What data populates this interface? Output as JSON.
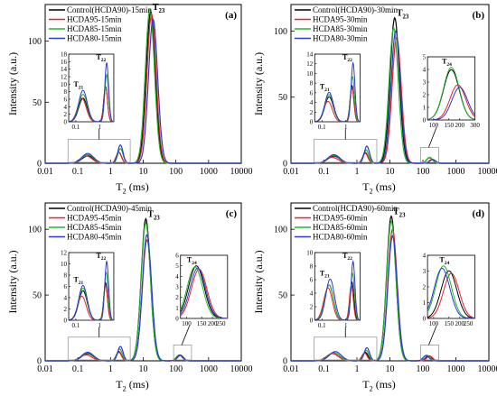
{
  "figure": {
    "x_label": "T",
    "x_label_sub": "2",
    "x_label_unit": " (ms)",
    "y_label": "Intensity (a.u.)"
  },
  "colors": {
    "Control": "#000000",
    "HCDA95": "#e8212b",
    "HCDA85": "#25b52c",
    "HCDA80": "#2b3bd1",
    "box": "#9a9a9a"
  },
  "chart_data": [
    {
      "type": "line",
      "panel_label": "(a)",
      "x_scale": "log",
      "xlim": [
        0.01,
        10000
      ],
      "ylim": [
        0,
        130
      ],
      "x_ticks": [
        "0.01",
        "0.1",
        "1",
        "10",
        "100",
        "1000",
        "10000"
      ],
      "y_ticks": [
        "0",
        "50",
        "100"
      ],
      "legend": [
        "Control(HCDA90)-15min",
        "HCDA95-15min",
        "HCDA85-15min",
        "HCDA80-15min"
      ],
      "peak_labels": [
        "T",
        "T"
      ],
      "peak_label_subs": [
        "23",
        ""
      ],
      "peaks": {
        "T21": {
          "Control": [
            0.2,
            6
          ],
          "HCDA95": [
            0.18,
            6
          ],
          "HCDA85": [
            0.2,
            7
          ],
          "HCDA80": [
            0.2,
            8
          ]
        },
        "T22": {
          "Control": [
            1.8,
            9
          ],
          "HCDA95": [
            1.8,
            9
          ],
          "HCDA85": [
            2.0,
            12
          ],
          "HCDA80": [
            2.0,
            15
          ]
        },
        "T23": {
          "Control": [
            17,
            124
          ],
          "HCDA95": [
            18,
            122
          ],
          "HCDA85": [
            16,
            126
          ],
          "HCDA80": [
            20,
            118
          ]
        }
      },
      "insets": [
        {
          "x_ticks": [
            "0.1",
            "1"
          ],
          "y_ticks": [
            "0",
            "2",
            "4",
            "6",
            "8",
            "10",
            "12",
            "14",
            "16",
            "18"
          ],
          "labels": [
            {
              "t": "T",
              "s": "21"
            },
            {
              "t": "T",
              "s": "22"
            }
          ]
        }
      ]
    },
    {
      "type": "line",
      "panel_label": "(b)",
      "x_scale": "log",
      "xlim": [
        0.01,
        10000
      ],
      "ylim": [
        0,
        120
      ],
      "x_ticks": [
        "0.01",
        "0.1",
        "1",
        "10",
        "100",
        "1000",
        "10000"
      ],
      "y_ticks": [
        "0",
        "50",
        "100"
      ],
      "legend": [
        "Control(HCDA90)-30min",
        "HCDA95-30min",
        "HCDA85-30min",
        "HCDA80-30min"
      ],
      "peak_labels": [
        "T"
      ],
      "peak_label_subs": [
        "23"
      ],
      "peaks": {
        "T21": {
          "Control": [
            0.2,
            5.5
          ],
          "HCDA95": [
            0.18,
            4.5
          ],
          "HCDA85": [
            0.2,
            6
          ],
          "HCDA80": [
            0.2,
            6.5
          ]
        },
        "T22": {
          "Control": [
            1.8,
            8
          ],
          "HCDA95": [
            1.8,
            7.5
          ],
          "HCDA85": [
            1.9,
            10
          ],
          "HCDA80": [
            2.0,
            13
          ]
        },
        "T23": {
          "Control": [
            14,
            110
          ],
          "HCDA95": [
            16,
            95
          ],
          "HCDA85": [
            13,
            102
          ],
          "HCDA80": [
            15,
            100
          ]
        },
        "T24": {
          "Control": [
            160,
            4.3
          ],
          "HCDA95": [
            190,
            3
          ],
          "HCDA85": [
            160,
            4.5
          ],
          "HCDA80": [
            200,
            2.8
          ]
        }
      },
      "insets": [
        {
          "x_ticks": [
            "0.1",
            "1"
          ],
          "y_ticks": [
            "0",
            "2",
            "4",
            "6",
            "8",
            "10",
            "12",
            "14"
          ],
          "labels": [
            {
              "t": "T",
              "s": "21"
            },
            {
              "t": "T",
              "s": "22"
            }
          ]
        },
        {
          "x_ticks": [
            "100",
            "150",
            "200",
            "300"
          ],
          "y_ticks": [
            "0",
            "1",
            "2",
            "3",
            "4",
            "5"
          ],
          "labels": [
            {
              "t": "T",
              "s": "24"
            }
          ]
        }
      ]
    },
    {
      "type": "line",
      "panel_label": "(c)",
      "x_scale": "log",
      "xlim": [
        0.01,
        10000
      ],
      "ylim": [
        0,
        120
      ],
      "x_ticks": [
        "0.01",
        "0.1",
        "1",
        "10",
        "100",
        "1000",
        "10000"
      ],
      "y_ticks": [
        "0",
        "50",
        "100"
      ],
      "legend": [
        "Control(HCDA90)-45min",
        "HCDA95-45min",
        "HCDA85-45min",
        "HCDA80-45min"
      ],
      "peak_labels": [
        "T"
      ],
      "peak_label_subs": [
        "23"
      ],
      "peaks": {
        "T21": {
          "Control": [
            0.2,
            5.5
          ],
          "HCDA95": [
            0.18,
            4.5
          ],
          "HCDA85": [
            0.2,
            6
          ],
          "HCDA80": [
            0.2,
            6.5
          ]
        },
        "T22": {
          "Control": [
            1.8,
            7
          ],
          "HCDA95": [
            1.8,
            6.5
          ],
          "HCDA85": [
            1.9,
            9
          ],
          "HCDA80": [
            2.0,
            11
          ]
        },
        "T23": {
          "Control": [
            12,
            108
          ],
          "HCDA95": [
            13,
            92
          ],
          "HCDA85": [
            12,
            105
          ],
          "HCDA80": [
            13,
            96
          ]
        },
        "T24": {
          "Control": [
            130,
            4.5
          ],
          "HCDA95": [
            140,
            4.2
          ],
          "HCDA85": [
            125,
            4.4
          ],
          "HCDA80": [
            135,
            4.3
          ]
        }
      },
      "insets": [
        {
          "x_ticks": [
            "0.1",
            "1"
          ],
          "y_ticks": [
            "0",
            "2",
            "4",
            "6",
            "8",
            "10",
            "12"
          ],
          "labels": [
            {
              "t": "T",
              "s": "21"
            },
            {
              "t": "T",
              "s": "22"
            }
          ]
        },
        {
          "x_ticks": [
            "100",
            "150",
            "200",
            "250"
          ],
          "y_ticks": [
            "0",
            "1",
            "2",
            "3",
            "4",
            "5",
            "6"
          ],
          "labels": [
            {
              "t": "T",
              "s": "24"
            }
          ]
        }
      ]
    },
    {
      "type": "line",
      "panel_label": "(d)",
      "x_scale": "log",
      "xlim": [
        0.01,
        10000
      ],
      "ylim": [
        0,
        120
      ],
      "x_ticks": [
        "0.01",
        "0.1",
        "1",
        "10",
        "100",
        "1000",
        "10000"
      ],
      "y_ticks": [
        "0",
        "50",
        "100"
      ],
      "legend": [
        "Control(HCDA90)-60min",
        "HCDA95-60min",
        "HCDA85-60min",
        "HCDA80-60min"
      ],
      "peak_labels": [
        "T"
      ],
      "peak_label_subs": [
        "23"
      ],
      "peaks": {
        "T21": {
          "Control": [
            0.2,
            6
          ],
          "HCDA95": [
            0.18,
            5.5
          ],
          "HCDA85": [
            0.2,
            6
          ],
          "HCDA80": [
            0.22,
            7
          ]
        },
        "T22": {
          "Control": [
            1.8,
            6.5
          ],
          "HCDA95": [
            1.7,
            6
          ],
          "HCDA85": [
            1.9,
            8
          ],
          "HCDA80": [
            2.0,
            10
          ]
        },
        "T23": {
          "Control": [
            11,
            110
          ],
          "HCDA95": [
            12,
            100
          ],
          "HCDA85": [
            11,
            106
          ],
          "HCDA80": [
            12,
            95
          ]
        },
        "T24": {
          "Control": [
            150,
            3.8
          ],
          "HCDA95": [
            160,
            3.6
          ],
          "HCDA85": [
            130,
            4.2
          ],
          "HCDA80": [
            125,
            4
          ]
        }
      },
      "insets": [
        {
          "x_ticks": [
            "0.1",
            "1"
          ],
          "y_ticks": [
            "0",
            "2",
            "4",
            "6",
            "8",
            "10"
          ],
          "labels": [
            {
              "t": "T",
              "s": "21"
            },
            {
              "t": "T",
              "s": "22"
            }
          ]
        },
        {
          "x_ticks": [
            "100",
            "150",
            "200",
            "250"
          ],
          "y_ticks": [
            "0",
            "1",
            "2",
            "3",
            "4"
          ],
          "labels": [
            {
              "t": "T",
              "s": "24"
            }
          ]
        }
      ]
    }
  ]
}
